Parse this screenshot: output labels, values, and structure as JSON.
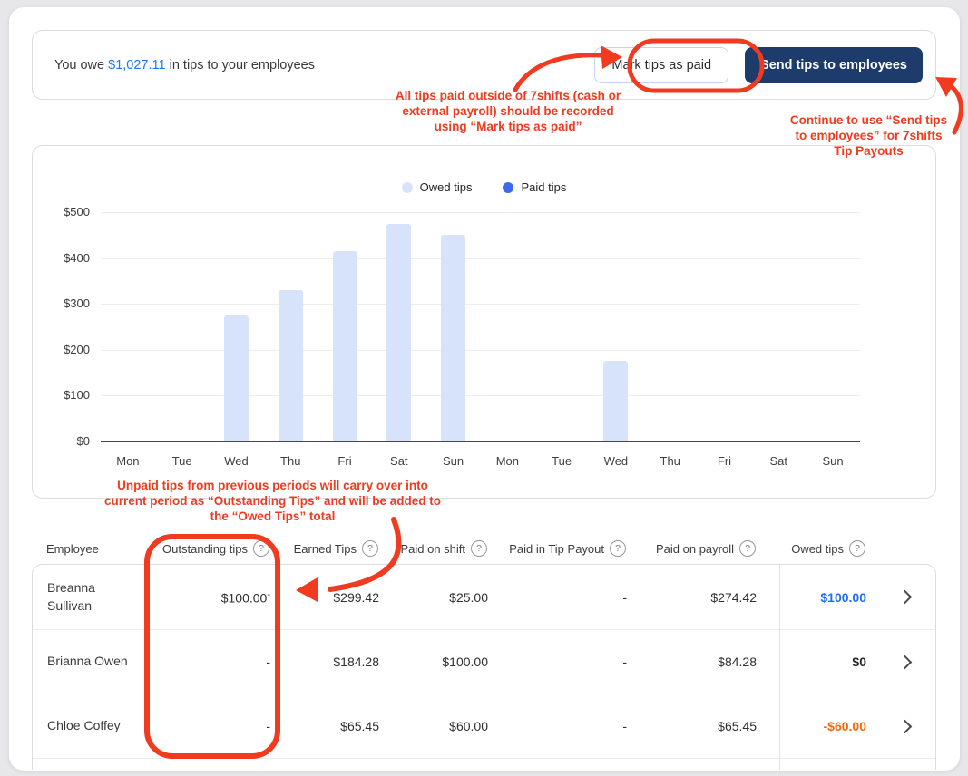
{
  "header": {
    "message_prefix": "You owe ",
    "amount": "$1,027.11",
    "message_suffix": " in tips to your employees",
    "buttons": {
      "mark_paid": "Mark tips as paid",
      "send_tips": "Send tips to employees"
    }
  },
  "annotations": {
    "mark_paid_note": "All tips paid outside of 7shifts (cash or\nexternal payroll) should be recorded\nusing “Mark tips as paid”",
    "send_tips_note": "Continue to use “Send tips\nto employees” for 7shifts\nTip Payouts",
    "outstanding_note": "Unpaid tips from previous periods will carry over into\ncurrent period as “Outstanding Tips” and will be added to\nthe “Owed Tips” total",
    "color": "#f03b20"
  },
  "chart_data": {
    "type": "bar",
    "title": "",
    "categories": [
      "Mon",
      "Tue",
      "Wed",
      "Thu",
      "Fri",
      "Sat",
      "Sun",
      "Mon",
      "Tue",
      "Wed",
      "Thu",
      "Fri",
      "Sat",
      "Sun"
    ],
    "series": [
      {
        "name": "Owed tips",
        "color": "#d7e2fb",
        "values": [
          0,
          0,
          275,
          330,
          415,
          475,
          450,
          0,
          0,
          175,
          0,
          0,
          0,
          0
        ]
      },
      {
        "name": "Paid tips",
        "color": "#3e68ee",
        "values": [
          0,
          0,
          0,
          0,
          0,
          0,
          0,
          0,
          0,
          0,
          0,
          0,
          0,
          0
        ]
      }
    ],
    "ylim": [
      0,
      500
    ],
    "ytick_labels": [
      "$0",
      "$100",
      "$200",
      "$300",
      "$400",
      "$500"
    ],
    "grid": true,
    "legend_position": "top-center"
  },
  "table": {
    "columns": [
      {
        "label": "Employee",
        "help": false
      },
      {
        "label": "Outstanding tips",
        "help": true
      },
      {
        "label": "Earned Tips",
        "help": true
      },
      {
        "label": "Paid on shift",
        "help": true
      },
      {
        "label": "Paid in Tip Payout",
        "help": true
      },
      {
        "label": "Paid on payroll",
        "help": true
      },
      {
        "label": "Owed tips",
        "help": true
      }
    ],
    "rows": [
      {
        "employee": "Breanna Sullivan",
        "outstanding": "$100.00",
        "outstanding_sup": "-",
        "earned_tips": "$299.42",
        "paid_on_shift": "$25.00",
        "paid_in_tip_payout": "-",
        "paid_on_payroll": "$274.42",
        "owed_tips": "$100.00",
        "owed_color": "#1f6ef2"
      },
      {
        "employee": "Brianna Owen",
        "outstanding": "-",
        "outstanding_sup": "",
        "earned_tips": "$184.28",
        "paid_on_shift": "$100.00",
        "paid_in_tip_payout": "-",
        "paid_on_payroll": "$84.28",
        "owed_tips": "$0",
        "owed_color": "#26262a"
      },
      {
        "employee": "Chloe Coffey",
        "outstanding": "-",
        "outstanding_sup": "",
        "earned_tips": "$65.45",
        "paid_on_shift": "$60.00",
        "paid_in_tip_payout": "-",
        "paid_on_payroll": "$65.45",
        "owed_tips": "-$60.00",
        "owed_color": "#f2690d"
      }
    ]
  },
  "colors": {
    "accent_blue": "#2374f2",
    "navy_button": "#1d3c6b",
    "annotation_red": "#f03b20",
    "owed_bar": "#d7e2fb",
    "paid_dot": "#3e68ee",
    "negative_orange": "#f2690d"
  }
}
